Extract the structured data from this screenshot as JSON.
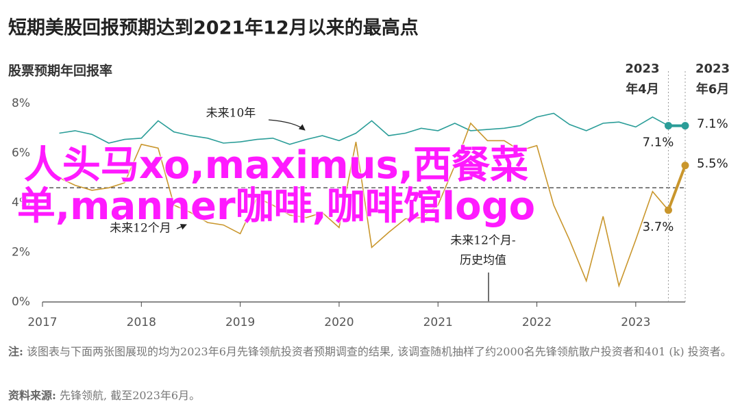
{
  "chart_data": {
    "type": "line",
    "title": "短期美股回报预期达到2021年12月以来的最高点",
    "y_label": "股票预期年回报率",
    "x": [
      2017.17,
      2017.33,
      2017.5,
      2017.67,
      2017.83,
      2018,
      2018.17,
      2018.33,
      2018.5,
      2018.67,
      2018.83,
      2019,
      2019.17,
      2019.33,
      2019.5,
      2019.67,
      2019.83,
      2020,
      2020.17,
      2020.33,
      2020.5,
      2020.67,
      2020.83,
      2021,
      2021.17,
      2021.33,
      2021.5,
      2021.67,
      2021.83,
      2022,
      2022.17,
      2022.33,
      2022.5,
      2022.67,
      2022.83,
      2023,
      2023.17,
      2023.33,
      2023.5
    ],
    "series": [
      {
        "name": "未来10年",
        "color": "#2a9d98",
        "values": [
          6.8,
          6.9,
          6.75,
          6.4,
          6.55,
          6.6,
          7.3,
          6.85,
          6.7,
          6.6,
          6.4,
          6.45,
          6.55,
          6.6,
          6.35,
          6.55,
          6.7,
          6.5,
          6.8,
          7.3,
          6.7,
          6.8,
          7.0,
          6.9,
          7.2,
          6.9,
          6.95,
          7.0,
          7.1,
          7.45,
          7.6,
          7.15,
          6.9,
          7.2,
          7.25,
          7.05,
          7.45,
          7.1,
          7.1
        ],
        "value_labels": [
          null,
          null,
          null,
          null,
          null,
          null,
          null,
          null,
          null,
          null,
          null,
          null,
          null,
          null,
          null,
          null,
          null,
          null,
          null,
          null,
          null,
          null,
          null,
          null,
          null,
          null,
          null,
          null,
          null,
          null,
          null,
          null,
          null,
          null,
          null,
          null,
          null,
          "7.1%",
          "7.1%"
        ]
      },
      {
        "name": "未来12个月",
        "color": "#c9962c",
        "values": [
          5.0,
          4.7,
          4.5,
          4.6,
          4.8,
          6.35,
          6.2,
          3.9,
          3.6,
          3.2,
          3.1,
          2.75,
          4.2,
          3.9,
          3.5,
          3.4,
          3.6,
          3.0,
          6.45,
          2.2,
          2.8,
          3.35,
          3.4,
          3.9,
          5.5,
          7.2,
          6.5,
          6.5,
          6.1,
          6.3,
          3.9,
          2.5,
          0.85,
          3.45,
          0.65,
          2.5,
          4.45,
          3.7,
          5.5
        ],
        "value_labels": [
          null,
          null,
          null,
          null,
          null,
          null,
          null,
          null,
          null,
          null,
          null,
          null,
          null,
          null,
          null,
          null,
          null,
          null,
          null,
          null,
          null,
          null,
          null,
          null,
          null,
          null,
          null,
          null,
          null,
          null,
          null,
          null,
          null,
          null,
          null,
          null,
          null,
          "3.7%",
          "5.5%"
        ]
      }
    ],
    "hlines": [
      {
        "value": 4.6,
        "label": [
          "未来12个月-",
          "历史均值"
        ]
      }
    ],
    "vlines": [
      {
        "value": 2023.33,
        "label": [
          "2023",
          "年4月"
        ]
      },
      {
        "value": 2023.5,
        "label": [
          "2023",
          "年6月"
        ]
      }
    ],
    "xlim": [
      2017,
      2023.5
    ],
    "xticks": [
      2017,
      2018,
      2019,
      2020,
      2021,
      2022,
      2023
    ],
    "ylim": [
      0,
      8
    ],
    "yticks": [
      {
        "value": 0,
        "label": "0%"
      },
      {
        "value": 2,
        "label": "2%"
      },
      {
        "value": 4,
        "label": "4%"
      },
      {
        "value": 6,
        "label": "6%"
      },
      {
        "value": 8,
        "label": "8%"
      }
    ],
    "grid": false
  },
  "note": {
    "label": "注:",
    "text": "该图表与下面两张图展现的均为2023年6月先锋领航投资者预期调查的结果, 该调查随机抽样了约2000名先锋领航散户投资者和401 (k) 投资者。"
  },
  "source": {
    "label": "资料来源:",
    "text": "先锋领航, 截至2023年6月。"
  },
  "overlay_text": "人头马xo,maximus,西餐菜单,manner咖啡,咖啡馆logo"
}
